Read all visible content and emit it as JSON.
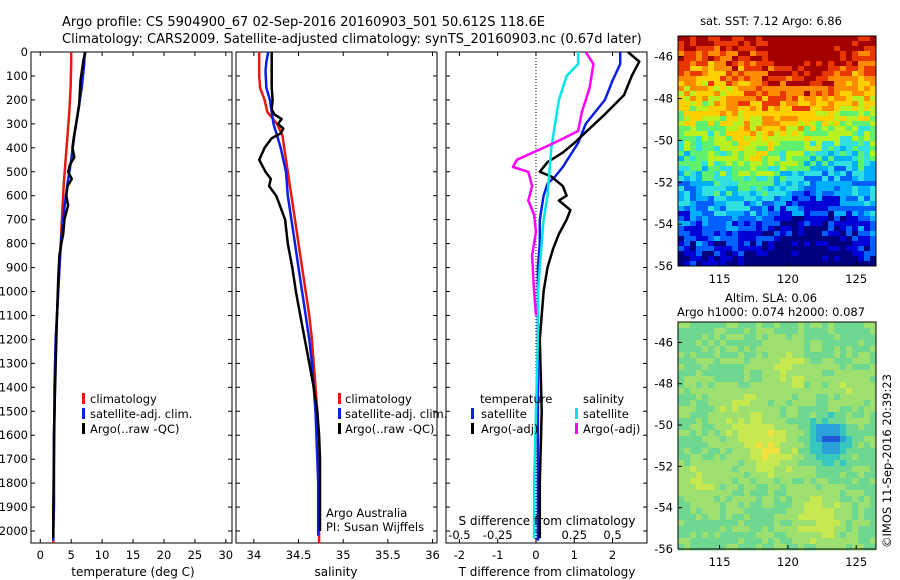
{
  "title": {
    "line1": "Argo profile: CS 5904900_67 02-Sep-2016 20160903_501 50.612S 118.6E",
    "line2": "Climatology: CARS2009. Satellite-adjusted climatology: synTS_20160903.nc (0.67d later)"
  },
  "colors": {
    "climatology": "#e8180e",
    "satellite": "#0a1ee8",
    "argo": "#000000",
    "s_satellite": "#00e6e6",
    "s_argo": "#ff00ff"
  },
  "depth_axis": {
    "ticks": [
      "0",
      "100",
      "200",
      "300",
      "400",
      "500",
      "600",
      "700",
      "800",
      "900",
      "1000",
      "1100",
      "1200",
      "1300",
      "1400",
      "1500",
      "1600",
      "1700",
      "1800",
      "1900",
      "2000"
    ],
    "range": [
      0,
      2050
    ]
  },
  "chart_data": [
    {
      "type": "line",
      "xlabel": "temperature (deg C)",
      "xlim": [
        -1.5,
        31
      ],
      "xticks": [
        "0",
        "5",
        "10",
        "15",
        "20",
        "25",
        "30"
      ],
      "legend": [
        "climatology",
        "satellite-adj. clim.",
        "Argo(..raw -QC)"
      ],
      "series": [
        {
          "name": "climatology",
          "color": "climatology",
          "x": [
            5.0,
            5.0,
            4.9,
            4.7,
            4.4,
            4.1,
            3.8,
            3.6,
            3.4,
            3.2,
            2.9,
            2.7,
            2.5,
            2.4,
            2.3,
            2.3,
            2.2,
            2.2,
            2.2,
            2.2,
            2.1,
            2.1,
            2.1
          ],
          "y": [
            0,
            50,
            150,
            250,
            350,
            450,
            550,
            650,
            750,
            850,
            1000,
            1100,
            1200,
            1300,
            1400,
            1500,
            1600,
            1700,
            1800,
            1900,
            2000,
            2040,
            2050
          ]
        },
        {
          "name": "satellite-adj. clim.",
          "color": "satellite",
          "x": [
            7.2,
            7.1,
            6.7,
            6.1,
            5.5,
            5.0,
            4.4,
            3.9,
            3.5,
            3.2,
            3.0,
            2.7,
            2.5,
            2.4,
            2.3,
            2.3,
            2.2,
            2.2,
            2.2,
            2.2,
            2.1,
            2.1
          ],
          "y": [
            0,
            50,
            150,
            250,
            350,
            450,
            550,
            650,
            750,
            850,
            950,
            1100,
            1200,
            1300,
            1400,
            1500,
            1600,
            1700,
            1800,
            1900,
            2000,
            2040
          ]
        },
        {
          "name": "Argo(..raw -QC)",
          "color": "argo",
          "x": [
            7.3,
            7.0,
            6.5,
            6.3,
            5.8,
            5.4,
            5.2,
            5.5,
            4.8,
            4.5,
            5.1,
            4.4,
            4.2,
            4.5,
            3.9,
            3.7,
            3.4,
            3.1,
            2.9,
            2.7,
            2.5,
            2.3,
            2.2,
            2.1,
            2.1
          ],
          "y": [
            0,
            30,
            120,
            220,
            300,
            360,
            400,
            440,
            470,
            500,
            530,
            560,
            600,
            640,
            700,
            760,
            800,
            850,
            950,
            1100,
            1300,
            1500,
            1700,
            1900,
            2030
          ]
        }
      ]
    },
    {
      "type": "line",
      "xlabel": "salinity",
      "xlim": [
        33.8,
        36.05
      ],
      "xticks": [
        "34",
        "34.5",
        "35",
        "35.5",
        "36"
      ],
      "legend": [
        "climatology",
        "satellite-adj. clim.",
        "Argo(..raw -QC)"
      ],
      "annotation": [
        "Argo Australia",
        "PI: Susan Wijffels"
      ],
      "series": [
        {
          "name": "climatology",
          "color": "climatology",
          "x": [
            34.06,
            34.06,
            34.06,
            34.07,
            34.12,
            34.15,
            34.26,
            34.32,
            34.34,
            34.36,
            34.38,
            34.42,
            34.46,
            34.5,
            34.54,
            34.58,
            34.62,
            34.65,
            34.67,
            34.69,
            34.71,
            34.72,
            34.73,
            34.73,
            34.73,
            34.73,
            34.73
          ],
          "y": [
            0,
            30,
            100,
            150,
            200,
            250,
            300,
            350,
            400,
            450,
            500,
            600,
            700,
            800,
            900,
            1000,
            1100,
            1200,
            1300,
            1400,
            1500,
            1600,
            1700,
            1800,
            1900,
            2000,
            2050
          ]
        },
        {
          "name": "satellite-adj. clim.",
          "color": "satellite",
          "x": [
            34.16,
            34.14,
            34.13,
            34.14,
            34.18,
            34.22,
            34.26,
            34.3,
            34.33,
            34.36,
            34.38,
            34.42,
            34.46,
            34.5,
            34.54,
            34.58,
            34.62,
            34.65,
            34.67,
            34.69,
            34.7,
            34.71,
            34.72,
            34.72,
            34.72,
            34.72
          ],
          "y": [
            0,
            40,
            80,
            150,
            200,
            300,
            350,
            400,
            450,
            500,
            600,
            700,
            800,
            900,
            1000,
            1100,
            1200,
            1300,
            1400,
            1500,
            1600,
            1700,
            1800,
            1900,
            2000,
            2020
          ]
        },
        {
          "name": "Argo(..raw -QC)",
          "color": "argo",
          "x": [
            34.2,
            34.2,
            34.2,
            34.21,
            34.2,
            34.23,
            34.31,
            34.27,
            34.33,
            34.3,
            34.2,
            34.12,
            34.06,
            34.13,
            34.19,
            34.17,
            34.25,
            34.3,
            34.35,
            34.38,
            34.43,
            34.47,
            34.52,
            34.57,
            34.62,
            34.67,
            34.71,
            34.73,
            34.74,
            34.74,
            34.74
          ],
          "y": [
            0,
            50,
            150,
            200,
            240,
            260,
            280,
            300,
            320,
            340,
            360,
            400,
            450,
            500,
            530,
            560,
            600,
            650,
            700,
            800,
            900,
            1000,
            1100,
            1200,
            1300,
            1400,
            1500,
            1600,
            1700,
            1900,
            2000
          ]
        }
      ]
    },
    {
      "type": "line",
      "xlabel": "T difference from climatology",
      "xlabel_top": "S difference from climatology",
      "xlim": [
        -2.35,
        2.9
      ],
      "xticks": [
        "-2",
        "-1",
        "0",
        "1",
        "2"
      ],
      "xticks_top": [
        "-0.5",
        "-0.25",
        "0",
        "0.25",
        "0.5"
      ],
      "legend_title_left": "temperature",
      "legend_title_right": "salinity",
      "legend": [
        "satellite",
        "Argo(-adj)",
        "satellite",
        "Argo(-adj)"
      ],
      "series": [
        {
          "name": "satellite",
          "color": "satellite",
          "x": [
            2.2,
            2.2,
            2.0,
            1.8,
            1.3,
            1.1,
            0.9,
            0.7,
            0.5,
            0.3,
            0.2,
            0.1,
            0.1,
            0.05,
            0.05,
            0.05,
            0.05,
            0.05
          ],
          "y": [
            0,
            50,
            120,
            200,
            300,
            380,
            430,
            480,
            520,
            550,
            600,
            700,
            800,
            900,
            1000,
            1200,
            1600,
            2040
          ]
        },
        {
          "name": "Argo(-adj)",
          "color": "argo",
          "x": [
            2.4,
            2.7,
            2.5,
            2.3,
            1.8,
            1.4,
            1.2,
            1.0,
            0.7,
            0.3,
            0.1,
            0.4,
            0.7,
            0.8,
            0.6,
            0.9,
            0.8,
            0.6,
            0.45,
            0.3,
            0.2,
            0.1,
            0.15,
            0.1,
            0.1
          ],
          "y": [
            0,
            40,
            100,
            180,
            260,
            320,
            350,
            380,
            420,
            460,
            500,
            520,
            560,
            600,
            620,
            660,
            700,
            760,
            820,
            900,
            1000,
            1200,
            1500,
            1800,
            2030
          ]
        },
        {
          "name": "satellite",
          "color": "s_satellite",
          "x": [
            1.1,
            1.1,
            0.8,
            0.6,
            0.5,
            0.4,
            0.35,
            0.3,
            0.2,
            0.15,
            0.1,
            0.05,
            0.05,
            0.0,
            -0.05,
            -0.05
          ],
          "y": [
            0,
            50,
            100,
            200,
            300,
            400,
            500,
            600,
            700,
            800,
            900,
            1000,
            1200,
            1500,
            1800,
            2030
          ]
        },
        {
          "name": "Argo(-adj)",
          "color": "s_argo",
          "x": [
            1.3,
            1.5,
            1.4,
            1.2,
            1.1,
            0.6,
            0.2,
            -0.5,
            -0.6,
            -0.2,
            -0.1,
            -0.2,
            -0.05,
            0.0,
            -0.1,
            -0.05,
            0.0
          ],
          "y": [
            0,
            50,
            150,
            250,
            330,
            370,
            400,
            450,
            480,
            500,
            560,
            620,
            680,
            750,
            850,
            1000,
            1100
          ]
        }
      ]
    },
    {
      "type": "heatmap",
      "title": "sat. SST: 7.12  Argo: 6.86",
      "xticks": [
        "115",
        "120",
        "125"
      ],
      "yticks": [
        "-46",
        "-48",
        "-50",
        "-52",
        "-54",
        "-56"
      ]
    },
    {
      "type": "heatmap",
      "title_line1": "Altim. SLA: 0.06",
      "title_line2": "Argo h1000: 0.074 h2000: 0.087",
      "xticks": [
        "115",
        "120",
        "125"
      ],
      "yticks": [
        "-46",
        "-48",
        "-50",
        "-52",
        "-54",
        "-56"
      ]
    }
  ],
  "stamp": "©IMOS 11-Sep-2016 20:39:23"
}
